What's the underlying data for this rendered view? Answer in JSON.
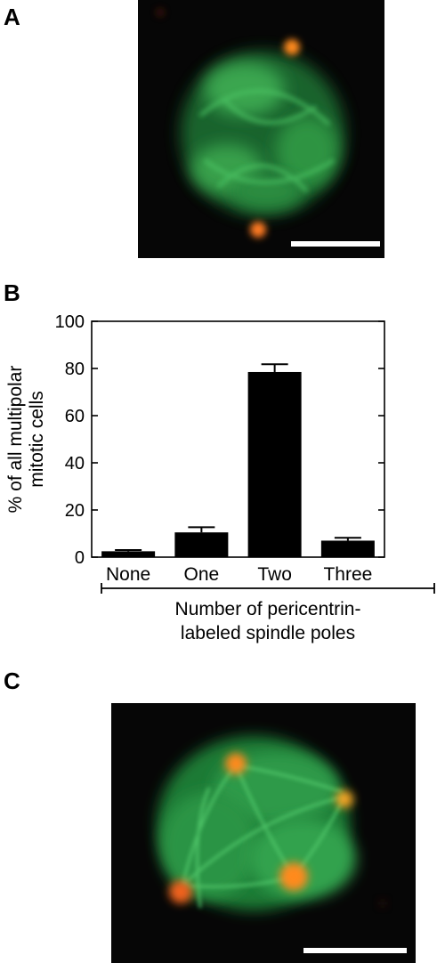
{
  "figure": {
    "panel_a": {
      "label": "A"
    },
    "panel_b": {
      "label": "B"
    },
    "panel_c": {
      "label": "C"
    }
  },
  "chart_data": {
    "type": "bar",
    "categories": [
      "None",
      "One",
      "Two",
      "Three"
    ],
    "values": [
      2.5,
      10.5,
      78.5,
      7
    ],
    "errors": [
      0.5,
      2.2,
      3.3,
      1.2
    ],
    "ylabel_line1": "% of all multipolar",
    "ylabel_line2": "mitotic cells",
    "xlabel_line1": "Number of pericentrin-",
    "xlabel_line2": "labeled spindle poles",
    "ylim": [
      0,
      100
    ],
    "yticks": [
      0,
      20,
      40,
      60,
      80,
      100
    ],
    "bar_color": "#000000",
    "grid": false,
    "legend": "none"
  },
  "colors": {
    "microtubule_green": "#2fa64a",
    "pericentrin_orange": "#f07a20",
    "background": "#060606",
    "scale_bar": "#ffffff"
  }
}
